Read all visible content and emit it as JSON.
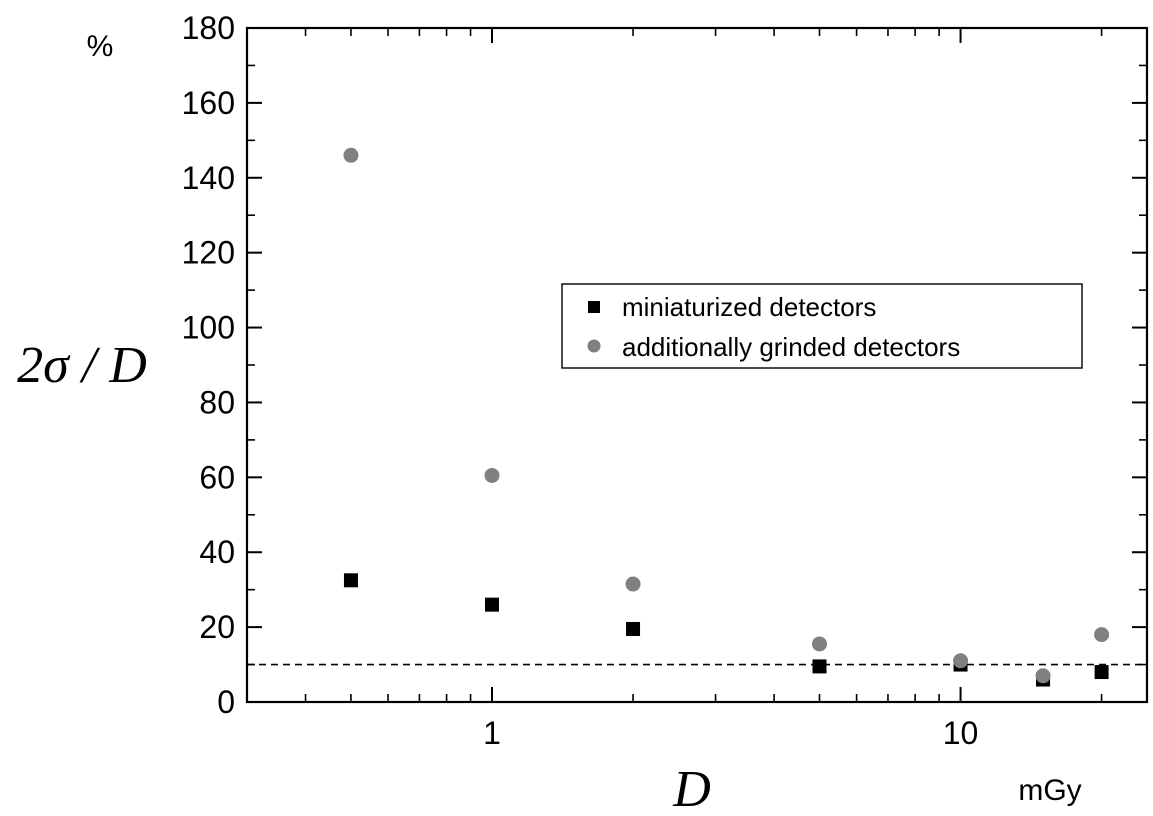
{
  "chart_data": {
    "type": "scatter",
    "xscale": "log",
    "xlim": [
      0.3,
      25
    ],
    "ylim": [
      0,
      180
    ],
    "xticks_major": [
      1,
      10
    ],
    "xtick_labels": [
      "1",
      "10"
    ],
    "yticks_major": [
      0,
      20,
      40,
      60,
      80,
      100,
      120,
      140,
      160,
      180
    ],
    "ytick_labels": [
      "0",
      "20",
      "40",
      "60",
      "80",
      "100",
      "120",
      "140",
      "160",
      "180"
    ],
    "xlabel": "D",
    "x_unit": "mGy",
    "ylabel": "2σ / D",
    "y_unit": "%",
    "reference_line": {
      "y": 10,
      "style": "dashed"
    },
    "legend_position": "center-right",
    "series": [
      {
        "name": "miniaturized detectors",
        "marker": "square",
        "color": "#000000",
        "x": [
          0.5,
          1,
          2,
          5,
          10,
          15,
          20
        ],
        "y": [
          32.5,
          26,
          19.5,
          9.5,
          10,
          6,
          8
        ]
      },
      {
        "name": "additionally grinded detectors",
        "marker": "circle",
        "color": "#808080",
        "x": [
          0.5,
          1,
          2,
          5,
          10,
          15,
          20
        ],
        "y": [
          146,
          60.5,
          31.5,
          15.5,
          11,
          7,
          18
        ]
      }
    ]
  }
}
